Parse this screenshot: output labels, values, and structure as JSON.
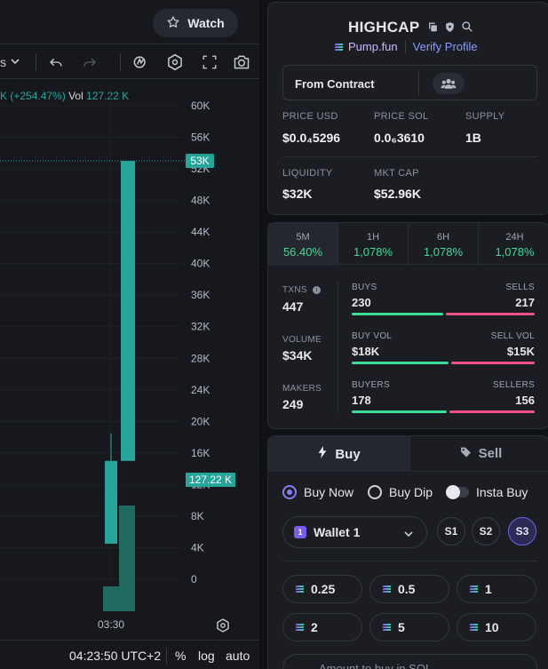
{
  "header": {
    "watch_label": "Watch"
  },
  "toolbar": {
    "interval_partial": "s",
    "icons": [
      "chevron-down-icon",
      "undo-icon",
      "redo-icon",
      "indicator-icon",
      "hexagon-settings-icon",
      "fullscreen-icon",
      "camera-icon"
    ]
  },
  "legend": {
    "change": "K (+254.47%)",
    "vol_label": "Vol",
    "vol_value": "127.22 K"
  },
  "chart_data": {
    "type": "candlestick",
    "y_ticks": [
      "60K",
      "56K",
      "52K",
      "48K",
      "44K",
      "40K",
      "36K",
      "32K",
      "28K",
      "24K",
      "20K",
      "16K",
      "12K",
      "8K",
      "4K",
      "0"
    ],
    "ylim": [
      0,
      60000
    ],
    "x_ticks": [
      "03:30"
    ],
    "price_marker": {
      "label": "53K",
      "value": 53000
    },
    "volume_marker": {
      "label": "127.22 K"
    },
    "candles": [
      {
        "open": 15000,
        "close": 4500,
        "high": 18500,
        "low": 4500,
        "color": "#26a69a"
      },
      {
        "open": 15000,
        "close": 53000,
        "high": 53000,
        "low": 15000,
        "color": "#26a69a"
      }
    ],
    "volume": [
      {
        "value": 0.2,
        "color": "#1f6b5f"
      },
      {
        "value": 0.85,
        "color": "#1f6b5f"
      }
    ]
  },
  "bottom_bar": {
    "time": "04:23:50 UTC+2",
    "pct": "%",
    "log": "log",
    "auto": "auto"
  },
  "token": {
    "name": "HIGHCAP",
    "platform": "Pump.fun",
    "verify": "Verify Profile",
    "contract_label": "From Contract",
    "stats": [
      {
        "label": "PRICE USD",
        "value": "$0.0₄5296"
      },
      {
        "label": "PRICE SOL",
        "value": "0.0₆3610"
      },
      {
        "label": "SUPPLY",
        "value": "1B"
      },
      {
        "label": "LIQUIDITY",
        "value": "$32K"
      },
      {
        "label": "MKT CAP",
        "value": "$52.96K"
      }
    ]
  },
  "timeframes": [
    {
      "label": "5M",
      "pct": "56.40%"
    },
    {
      "label": "1H",
      "pct": "1,078%"
    },
    {
      "label": "6H",
      "pct": "1,078%"
    },
    {
      "label": "24H",
      "pct": "1,078%"
    }
  ],
  "metrics": {
    "txns_label": "TXNS",
    "txns": "447",
    "volume_label": "VOLUME",
    "volume": "$34K",
    "makers_label": "MAKERS",
    "makers": "249",
    "buys_label": "BUYS",
    "buys": "230",
    "sells_label": "SELLS",
    "sells": "217",
    "buy_vol_label": "BUY VOL",
    "buy_vol": "$18K",
    "sell_vol_label": "SELL VOL",
    "sell_vol": "$15K",
    "buyers_label": "BUYERS",
    "buyers": "178",
    "sellers_label": "SELLERS",
    "sellers": "156",
    "buy_ratio": 0.515,
    "buy_vol_ratio": 0.545,
    "buyer_ratio": 0.533,
    "colors": {
      "buy": "#3ddc97",
      "sell": "#f0508a"
    }
  },
  "trade": {
    "buy_tab": "Buy",
    "sell_tab": "Sell",
    "buy_now": "Buy Now",
    "buy_dip": "Buy Dip",
    "insta_buy": "Insta Buy",
    "wallet": "Wallet 1",
    "wallet_badge": "1",
    "slots": [
      "S1",
      "S2",
      "S3"
    ],
    "amounts": [
      "0.25",
      "0.5",
      "1",
      "2",
      "5",
      "10"
    ],
    "amount_placeholder": "Amount to buy in SOL"
  }
}
